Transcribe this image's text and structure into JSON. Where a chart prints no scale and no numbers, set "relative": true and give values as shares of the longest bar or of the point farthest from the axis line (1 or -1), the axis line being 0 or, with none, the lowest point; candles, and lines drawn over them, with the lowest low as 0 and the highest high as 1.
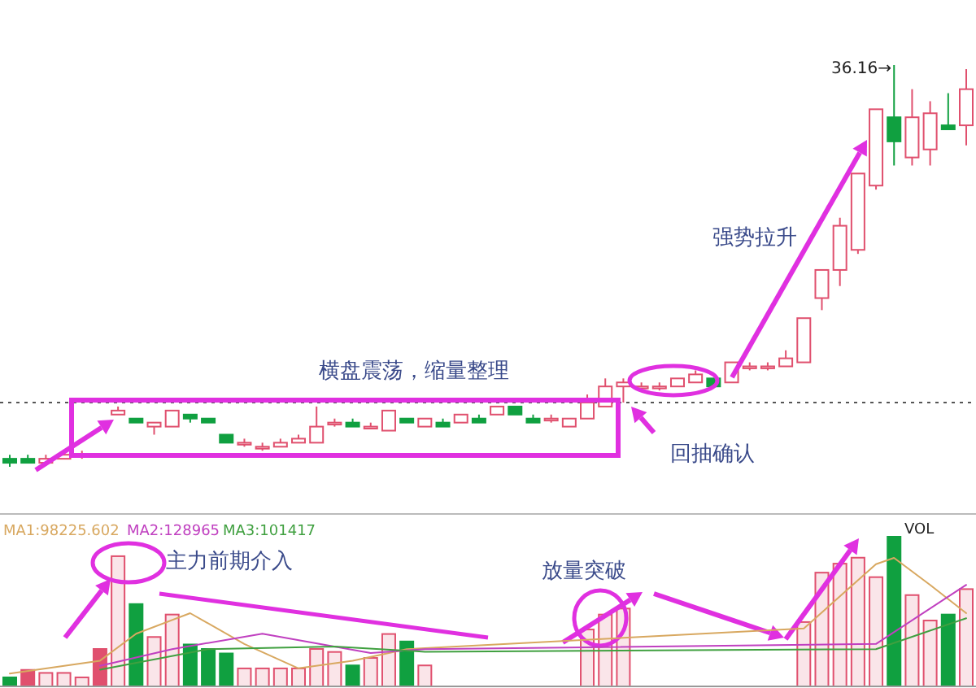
{
  "chart_data": [
    {
      "type": "candlestick",
      "relative": true,
      "categories": [
        null,
        null,
        null,
        null,
        null,
        null,
        null,
        null,
        null,
        null,
        null,
        null,
        null,
        null,
        null,
        null,
        null,
        null,
        null,
        null,
        null,
        null,
        null,
        null,
        null,
        null,
        null,
        null,
        null,
        null,
        null,
        null,
        null,
        null,
        null,
        null,
        null,
        null,
        null,
        null,
        null,
        null,
        null,
        null,
        null,
        null,
        null,
        null,
        null,
        null,
        null,
        null,
        null,
        null
      ],
      "ohlc": [
        [
          0.02,
          0.03,
          0,
          0.01
        ],
        [
          0.02,
          0.03,
          0.01,
          0.01
        ],
        [
          0.01,
          0.03,
          0.01,
          0.02
        ],
        [
          0.02,
          0.04,
          0.02,
          0.03
        ],
        [
          0.03,
          0.04,
          0.02,
          0.03
        ],
        null,
        [
          0.13,
          0.15,
          0.13,
          0.14
        ],
        [
          0.12,
          0.12,
          0.11,
          0.11
        ],
        [
          0.1,
          0.11,
          0.08,
          0.11
        ],
        [
          0.1,
          0.14,
          0.1,
          0.14
        ],
        [
          0.13,
          0.13,
          0.11,
          0.12
        ],
        [
          0.12,
          0.12,
          0.11,
          0.11
        ],
        [
          0.08,
          0.08,
          0.06,
          0.06
        ],
        [
          0.06,
          0.07,
          0.05,
          0.06
        ],
        [
          0.05,
          0.06,
          0.04,
          0.05
        ],
        [
          0.05,
          0.07,
          0.05,
          0.06
        ],
        [
          0.06,
          0.08,
          0.06,
          0.07
        ],
        [
          0.06,
          0.15,
          0.06,
          0.1
        ],
        [
          0.11,
          0.12,
          0.1,
          0.11
        ],
        [
          0.11,
          0.12,
          0.1,
          0.1
        ],
        [
          0.1,
          0.11,
          0.1,
          0.1
        ],
        [
          0.09,
          0.14,
          0.09,
          0.14
        ],
        [
          0.12,
          0.12,
          0.11,
          0.11
        ],
        [
          0.1,
          0.12,
          0.1,
          0.12
        ],
        [
          0.11,
          0.12,
          0.1,
          0.1
        ],
        [
          0.11,
          0.13,
          0.11,
          0.13
        ],
        [
          0.12,
          0.13,
          0.11,
          0.11
        ],
        [
          0.13,
          0.15,
          0.13,
          0.15
        ],
        [
          0.15,
          0.15,
          0.13,
          0.13
        ],
        [
          0.12,
          0.13,
          0.11,
          0.11
        ],
        [
          0.12,
          0.13,
          0.11,
          0.12
        ],
        [
          0.1,
          0.12,
          0.1,
          0.12
        ],
        [
          0.12,
          0.18,
          0.12,
          0.16
        ],
        [
          0.15,
          0.22,
          0.15,
          0.2
        ],
        [
          0.2,
          0.22,
          0.16,
          0.21
        ],
        [
          0.2,
          0.21,
          0.19,
          0.2
        ],
        [
          0.2,
          0.21,
          0.19,
          0.2
        ],
        [
          0.2,
          0.22,
          0.2,
          0.22
        ],
        [
          0.21,
          0.24,
          0.21,
          0.23
        ],
        [
          0.22,
          0.22,
          0.2,
          0.2
        ],
        [
          0.21,
          0.26,
          0.21,
          0.26
        ],
        [
          0.25,
          0.26,
          0.24,
          0.25
        ],
        [
          0.25,
          0.26,
          0.24,
          0.25
        ],
        [
          0.25,
          0.29,
          0.25,
          0.27
        ],
        [
          0.26,
          0.37,
          0.26,
          0.37
        ],
        [
          0.42,
          0.49,
          0.39,
          0.49
        ],
        [
          0.49,
          0.62,
          0.45,
          0.6
        ],
        [
          0.54,
          0.73,
          0.53,
          0.73
        ],
        [
          0.7,
          0.89,
          0.69,
          0.89
        ],
        [
          0.87,
          1,
          0.75,
          0.81
        ],
        [
          0.77,
          0.94,
          0.75,
          0.87
        ],
        [
          0.79,
          0.91,
          0.75,
          0.88
        ],
        [
          0.85,
          0.93,
          0.84,
          0.84
        ],
        [
          0.85,
          0.99,
          0.8,
          0.94
        ]
      ],
      "colors": [
        "#10a040",
        "#10a040",
        "#e0506e",
        "#e0506e",
        "#e0506e",
        null,
        "#e0506e",
        "#10a040",
        "#e0506e",
        "#e0506e",
        "#10a040",
        "#10a040",
        "#10a040",
        "#e0506e",
        "#e0506e",
        "#e0506e",
        "#e0506e",
        "#e0506e",
        "#e0506e",
        "#10a040",
        "#e0506e",
        "#e0506e",
        "#10a040",
        "#e0506e",
        "#10a040",
        "#e0506e",
        "#10a040",
        "#e0506e",
        "#10a040",
        "#10a040",
        "#e0506e",
        "#e0506e",
        "#e0506e",
        "#e0506e",
        "#e0506e",
        "#e0506e",
        "#e0506e",
        "#e0506e",
        "#e0506e",
        "#10a040",
        "#e0506e",
        "#e0506e",
        "#e0506e",
        "#e0506e",
        "#e0506e",
        "#e0506e",
        "#e0506e",
        "#e0506e",
        "#e0506e",
        "#10a040",
        "#e0506e",
        "#e0506e",
        "#10a040",
        "#e0506e"
      ],
      "ref_lines": [
        {
          "axis": "y",
          "value": 0.16,
          "line_style": "dotted",
          "color": "#555555"
        }
      ],
      "annotations": [
        "横盘震荡，缩量整理",
        "强势拉升",
        "回抽确认",
        "36.16→"
      ]
    },
    {
      "type": "bar",
      "relative": true,
      "categories": [
        null,
        null,
        null,
        null,
        null,
        null,
        null,
        null,
        null,
        null,
        null,
        null,
        null,
        null,
        null,
        null,
        null,
        null,
        null,
        null,
        null,
        null,
        null,
        null,
        null,
        null,
        null,
        null,
        null,
        null,
        null,
        null,
        null,
        null,
        null,
        null,
        null,
        null,
        null,
        null,
        null,
        null,
        null,
        null,
        null,
        null,
        null,
        null,
        null,
        null,
        null,
        null,
        null,
        null
      ],
      "series": [
        {
          "type": "bar",
          "values": [
            0.06,
            0.11,
            0.09,
            0.09,
            0.06,
            0.25,
            0.87,
            0.55,
            0.33,
            0.48,
            0.28,
            0.25,
            0.22,
            0.12,
            0.12,
            0.12,
            0.12,
            0.25,
            0.23,
            0.14,
            0.19,
            0.35,
            0.3,
            0.14,
            null,
            null,
            null,
            null,
            null,
            null,
            null,
            null,
            0.38,
            0.48,
            0.52,
            null,
            null,
            null,
            null,
            null,
            null,
            null,
            null,
            null,
            0.43,
            0.76,
            0.82,
            0.86,
            0.73,
            1,
            0.61,
            0.44,
            0.48,
            0.65
          ],
          "colors": [
            "#10a040",
            "#e0506e",
            "#e0506e",
            "#e0506e",
            "#e0506e",
            "#e0506e",
            "#e0506e",
            "#10a040",
            "#e0506e",
            "#e0506e",
            "#10a040",
            "#10a040",
            "#10a040",
            "#e0506e",
            "#e0506e",
            "#e0506e",
            "#e0506e",
            "#e0506e",
            "#e0506e",
            "#10a040",
            "#e0506e",
            "#e0506e",
            "#10a040",
            "#e0506e",
            null,
            null,
            null,
            null,
            null,
            null,
            null,
            null,
            "#e0506e",
            "#e0506e",
            "#e0506e",
            null,
            null,
            null,
            null,
            null,
            null,
            null,
            null,
            null,
            "#e0506e",
            "#e0506e",
            "#e0506e",
            "#e0506e",
            "#e0506e",
            "#10a040",
            "#e0506e",
            "#e0506e",
            "#10a040",
            "#e0506e"
          ]
        }
      ],
      "annotations": [
        "主力前期介入",
        "放量突破",
        "VOL"
      ]
    },
    {
      "type": "line",
      "relative": true,
      "categories": [
        null,
        null,
        null,
        null,
        null,
        null,
        null,
        null,
        null,
        null,
        null,
        null,
        null,
        null,
        null,
        null,
        null,
        null,
        null,
        null,
        null,
        null,
        null,
        null,
        null,
        null,
        null,
        null,
        null,
        null,
        null,
        null,
        null,
        null,
        null,
        null,
        null,
        null,
        null,
        null,
        null,
        null,
        null,
        null,
        null,
        null,
        null,
        null,
        null,
        null,
        null,
        null,
        null,
        null
      ],
      "series": [
        {
          "color": "#d8a860",
          "values": [
            0.1,
            null,
            null,
            null,
            null,
            0.2,
            null,
            0.41,
            null,
            null,
            0.57,
            null,
            null,
            0.33,
            null,
            null,
            0.14,
            null,
            null,
            0.2,
            null,
            null,
            0.29,
            null,
            null,
            null,
            null,
            null,
            null,
            null,
            null,
            null,
            null,
            null,
            null,
            null,
            null,
            null,
            null,
            null,
            null,
            null,
            null,
            null,
            0.45,
            null,
            null,
            null,
            0.95,
            1,
            null,
            0.79,
            null,
            0.57
          ]
        },
        {
          "color": "#c040c0",
          "values": [
            null,
            null,
            null,
            null,
            null,
            0.16,
            null,
            null,
            null,
            0.29,
            null,
            null,
            null,
            null,
            0.41,
            null,
            null,
            null,
            null,
            null,
            0.26,
            null,
            null,
            0.29,
            null,
            null,
            null,
            null,
            null,
            null,
            null,
            null,
            null,
            null,
            null,
            null,
            null,
            null,
            null,
            null,
            null,
            null,
            null,
            null,
            null,
            null,
            null,
            null,
            0.33,
            null,
            null,
            null,
            null,
            0.79
          ]
        },
        {
          "color": "#40a040",
          "values": [
            null,
            null,
            null,
            null,
            null,
            0.13,
            null,
            null,
            null,
            null,
            null,
            0.29,
            null,
            null,
            null,
            null,
            null,
            null,
            0.31,
            null,
            null,
            null,
            null,
            0.27,
            null,
            null,
            null,
            null,
            null,
            null,
            null,
            null,
            null,
            null,
            null,
            null,
            null,
            null,
            null,
            null,
            null,
            null,
            null,
            null,
            null,
            null,
            null,
            null,
            0.29,
            null,
            null,
            null,
            null,
            0.53
          ]
        }
      ],
      "annotations": [
        "MA1:98225.602",
        "MA2:128965",
        "MA3:101417"
      ]
    }
  ]
}
